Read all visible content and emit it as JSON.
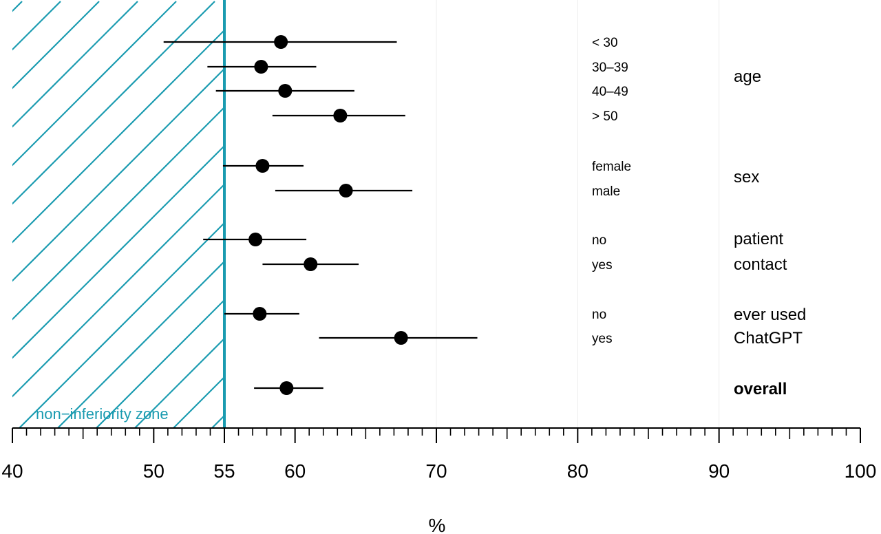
{
  "chart_data": {
    "type": "scatter",
    "subtype": "forest-plot",
    "xlabel": "%",
    "xlim": [
      40,
      100
    ],
    "x_ticks": [
      40,
      50,
      55,
      60,
      70,
      80,
      90,
      100
    ],
    "grid": "vertical lines at 70, 80, 90",
    "threshold": {
      "value": 55,
      "label": "non−inferiority zone",
      "color": "#1a9bb0"
    },
    "rows": [
      {
        "label": "< 30",
        "estimate": 59.0,
        "lower": 50.7,
        "upper": 67.2
      },
      {
        "label": "30–39",
        "estimate": 57.6,
        "lower": 53.8,
        "upper": 61.5
      },
      {
        "label": "40–49",
        "estimate": 59.3,
        "lower": 54.4,
        "upper": 64.2
      },
      {
        "label": "> 50",
        "estimate": 63.2,
        "lower": 58.4,
        "upper": 67.8
      },
      {
        "label": "female",
        "estimate": 57.7,
        "lower": 54.9,
        "upper": 60.6
      },
      {
        "label": "male",
        "estimate": 63.6,
        "lower": 58.6,
        "upper": 68.3
      },
      {
        "label": "no",
        "estimate": 57.2,
        "lower": 53.5,
        "upper": 60.8
      },
      {
        "label": "yes",
        "estimate": 61.1,
        "lower": 57.7,
        "upper": 64.5
      },
      {
        "label": "no",
        "estimate": 57.5,
        "lower": 55.0,
        "upper": 60.3
      },
      {
        "label": "yes",
        "estimate": 67.5,
        "lower": 61.7,
        "upper": 72.9
      },
      {
        "label": "",
        "estimate": 59.4,
        "lower": 57.1,
        "upper": 62.0
      }
    ],
    "groups": [
      {
        "lines": [
          "age"
        ],
        "bold": false
      },
      {
        "lines": [
          "sex"
        ],
        "bold": false
      },
      {
        "lines": [
          "patient",
          "contact"
        ],
        "bold": false
      },
      {
        "lines": [
          "ever used",
          "ChatGPT"
        ],
        "bold": false
      },
      {
        "lines": [
          "overall"
        ],
        "bold": true
      }
    ]
  }
}
